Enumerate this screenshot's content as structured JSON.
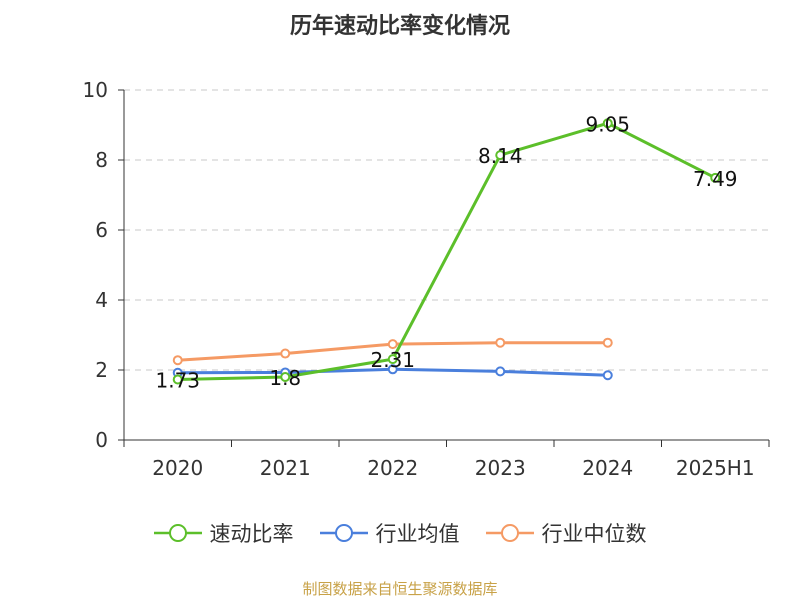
{
  "title": "历年速动比率变化情况",
  "source": "制图数据来自恒生聚源数据库",
  "chart_data": {
    "type": "line",
    "categories": [
      "2020",
      "2021",
      "2022",
      "2023",
      "2024",
      "2025H1"
    ],
    "ylim": [
      0,
      10
    ],
    "yticks": [
      0,
      2,
      4,
      6,
      8,
      10
    ],
    "grid": true,
    "legend_position": "bottom",
    "series": [
      {
        "name": "速动比率",
        "color": "#5cbf2a",
        "values": [
          1.73,
          1.8,
          2.31,
          8.14,
          9.05,
          7.49
        ],
        "labels": [
          "1.73",
          "1.8",
          "2.31",
          "8.14",
          "9.05",
          "7.49"
        ]
      },
      {
        "name": "行业均值",
        "color": "#4a7fdc",
        "values": [
          1.92,
          1.93,
          2.02,
          1.96,
          1.85,
          null
        ]
      },
      {
        "name": "行业中位数",
        "color": "#f59a64",
        "values": [
          2.28,
          2.47,
          2.74,
          2.78,
          2.78,
          null
        ]
      }
    ]
  }
}
